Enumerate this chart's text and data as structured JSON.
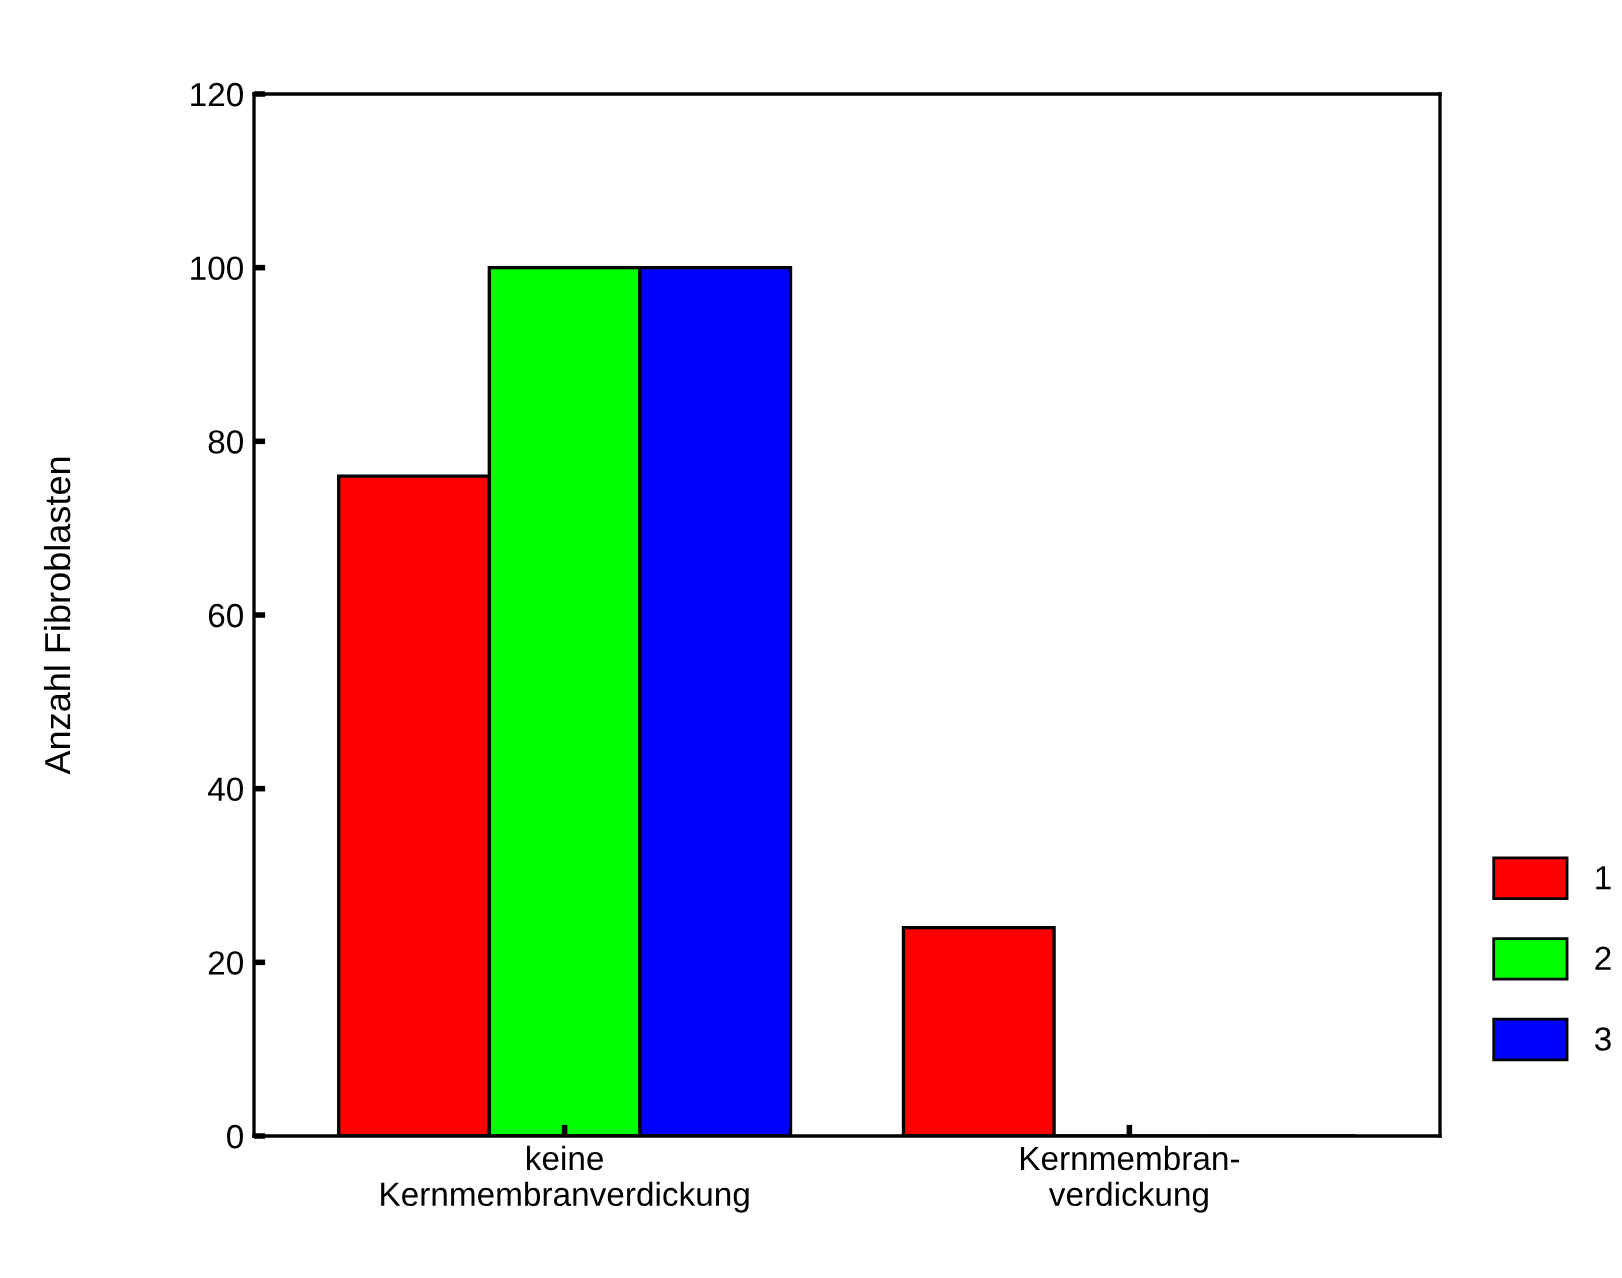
{
  "chart_data": {
    "type": "bar",
    "ylabel": "Anzahl Fibroblasten",
    "categories": [
      "keine\nKernmembranverdickung",
      "Kernmembran-\nverdickung"
    ],
    "series": [
      {
        "name": "1",
        "color": "#ff0000",
        "values": [
          76,
          24
        ]
      },
      {
        "name": "2",
        "color": "#00ff00",
        "values": [
          100,
          0
        ]
      },
      {
        "name": "3",
        "color": "#0000ff",
        "values": [
          100,
          0
        ]
      }
    ],
    "ylim": [
      0,
      120
    ],
    "yticks": [
      0,
      20,
      40,
      60,
      80,
      100,
      120
    ],
    "grid": false,
    "legend": "right"
  }
}
